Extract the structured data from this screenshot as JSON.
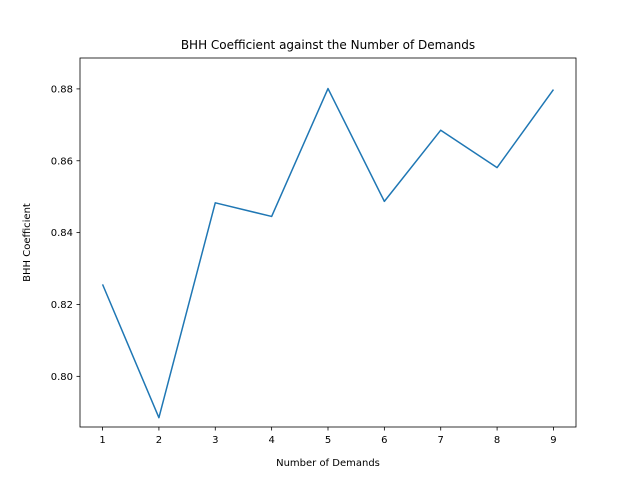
{
  "chart_data": {
    "type": "line",
    "title": "BHH Coefficient against the Number of Demands",
    "xlabel": "Number of Demands",
    "ylabel": "BHH Coefficient",
    "x": [
      1,
      2,
      3,
      4,
      5,
      6,
      7,
      8,
      9
    ],
    "series": [
      {
        "values": [
          0.8256,
          0.7885,
          0.8483,
          0.8445,
          0.8801,
          0.8487,
          0.8685,
          0.8581,
          0.8798
        ],
        "color": "#1f77b4"
      }
    ],
    "xlim": [
      0.6,
      9.4
    ],
    "ylim": [
      0.7859,
      0.8886
    ],
    "xticks": [
      "1",
      "2",
      "3",
      "4",
      "5",
      "6",
      "7",
      "8",
      "9"
    ],
    "yticks": [
      "0.80",
      "0.82",
      "0.84",
      "0.86",
      "0.88"
    ],
    "grid": false,
    "legend": "none"
  }
}
